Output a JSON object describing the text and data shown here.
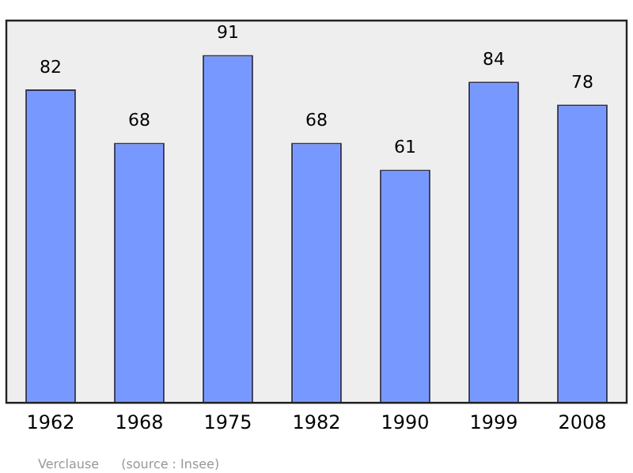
{
  "chart_data": {
    "type": "bar",
    "categories": [
      "1962",
      "1968",
      "1975",
      "1982",
      "1990",
      "1999",
      "2008"
    ],
    "values": [
      82,
      68,
      91,
      68,
      61,
      84,
      78
    ],
    "color": "#7799ff",
    "ylim": [
      0,
      100
    ],
    "tick_labels": "x",
    "data_labels": true,
    "grid": false,
    "legend": false,
    "annotations": [
      "Verclause",
      "(source : Insee)"
    ]
  }
}
